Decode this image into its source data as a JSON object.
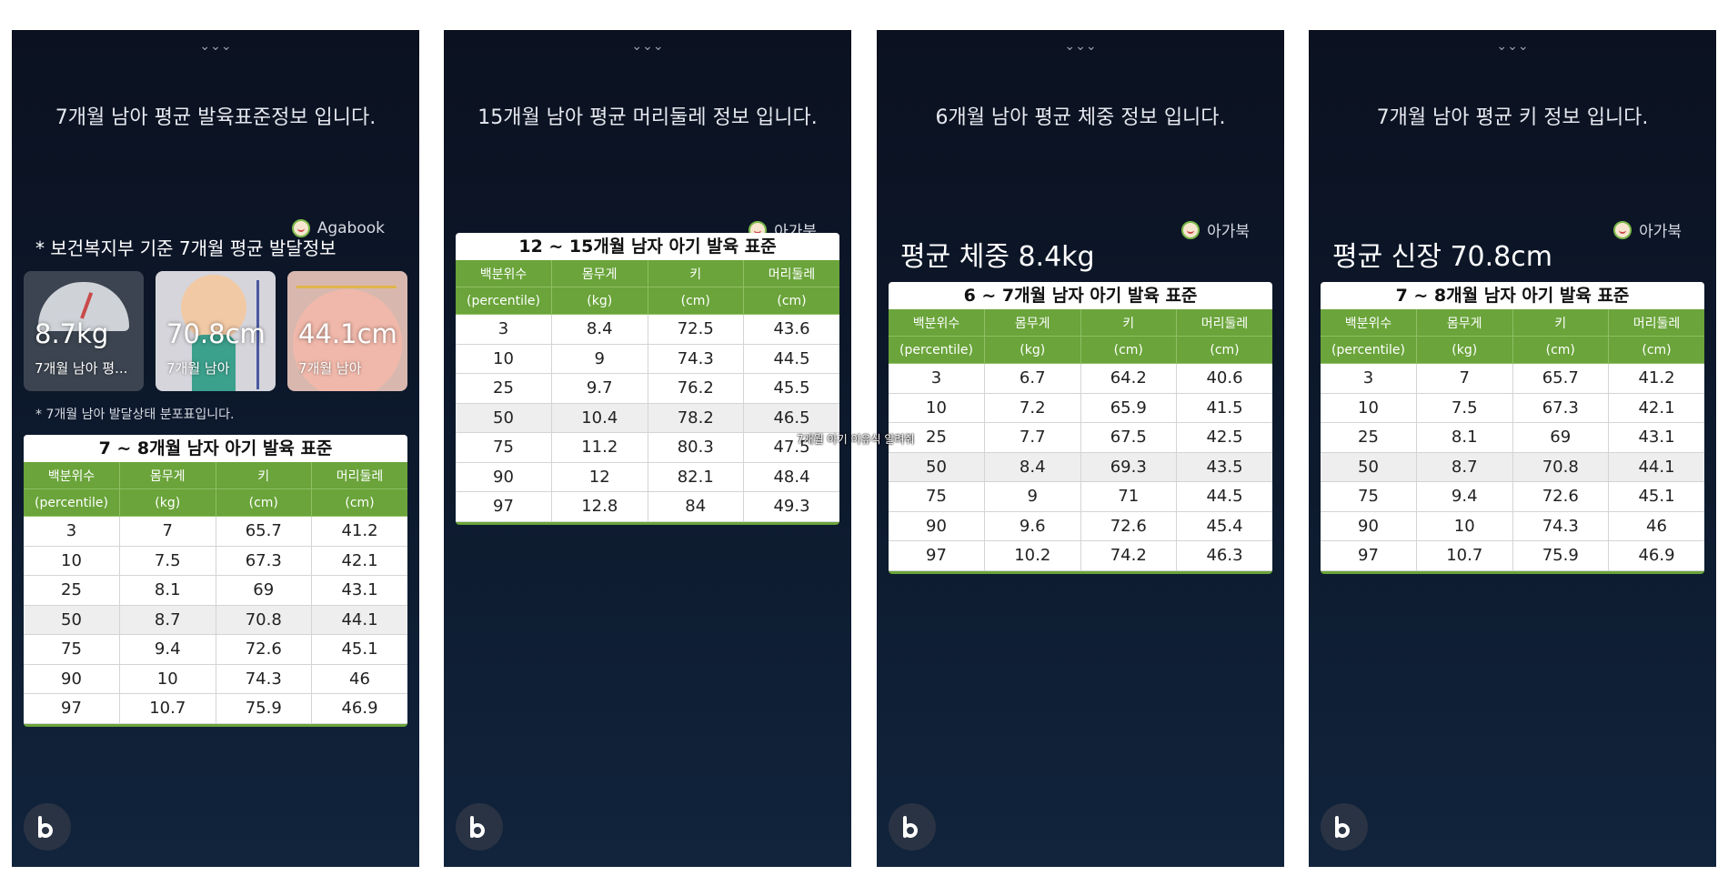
{
  "common": {
    "chevron": "⌄⌄⌄",
    "table_headers": [
      {
        "ko": "백분위수",
        "en": "(percentile)"
      },
      {
        "ko": "몸무게",
        "en": "(kg)"
      },
      {
        "ko": "키",
        "en": "(cm)"
      },
      {
        "ko": "머리둘레",
        "en": "(cm)"
      }
    ]
  },
  "panels": [
    {
      "reply": "7개월 남아 평균 발육표준정보 입니다.",
      "source": "Agabook",
      "subheading": "* 보건복지부 기준 7개월 평균 발달정보",
      "cards": [
        {
          "value": "8.7kg",
          "label": "7개월 남아 평..."
        },
        {
          "value": "70.8cm",
          "label": "7개월 남아"
        },
        {
          "value": "44.1cm",
          "label": "7개월 남아"
        }
      ],
      "note": "* 7개월 남아 발달상태 분포표입니다.",
      "table": {
        "title": "7 ~ 8개월 남자 아기 발육 표준",
        "highlight_row": 3,
        "rows": [
          [
            "3",
            "7",
            "65.7",
            "41.2"
          ],
          [
            "10",
            "7.5",
            "67.3",
            "42.1"
          ],
          [
            "25",
            "8.1",
            "69",
            "43.1"
          ],
          [
            "50",
            "8.7",
            "70.8",
            "44.1"
          ],
          [
            "75",
            "9.4",
            "72.6",
            "45.1"
          ],
          [
            "90",
            "10",
            "74.3",
            "46"
          ],
          [
            "97",
            "10.7",
            "75.9",
            "46.9"
          ]
        ]
      }
    },
    {
      "reply": "15개월 남아 평균 머리둘레 정보 입니다.",
      "source": "아가북",
      "table": {
        "title": "12 ~ 15개월 남자 아기 발육 표준",
        "highlight_row": 3,
        "rows": [
          [
            "3",
            "8.4",
            "72.5",
            "43.6"
          ],
          [
            "10",
            "9",
            "74.3",
            "44.5"
          ],
          [
            "25",
            "9.7",
            "76.2",
            "45.5"
          ],
          [
            "50",
            "10.4",
            "78.2",
            "46.5"
          ],
          [
            "75",
            "11.2",
            "80.3",
            "47.5"
          ],
          [
            "90",
            "12",
            "82.1",
            "48.4"
          ],
          [
            "97",
            "12.8",
            "84",
            "49.3"
          ]
        ]
      }
    },
    {
      "reply": "6개월 남아 평균 체중 정보 입니다.",
      "source": "아가북",
      "big": "평균 체중 8.4kg",
      "table": {
        "title": "6 ~ 7개월 남자 아기 발육 표준",
        "highlight_row": 3,
        "rows": [
          [
            "3",
            "6.7",
            "64.2",
            "40.6"
          ],
          [
            "10",
            "7.2",
            "65.9",
            "41.5"
          ],
          [
            "25",
            "7.7",
            "67.5",
            "42.5"
          ],
          [
            "50",
            "8.4",
            "69.3",
            "43.5"
          ],
          [
            "75",
            "9",
            "71",
            "44.5"
          ],
          [
            "90",
            "9.6",
            "72.6",
            "45.4"
          ],
          [
            "97",
            "10.2",
            "74.2",
            "46.3"
          ]
        ]
      }
    },
    {
      "reply": "7개월 남아 평균 키 정보 입니다.",
      "source": "아가북",
      "big": "평균 신장 70.8cm",
      "table": {
        "title": "7 ~ 8개월 남자 아기 발육 표준",
        "highlight_row": 3,
        "rows": [
          [
            "3",
            "7",
            "65.7",
            "41.2"
          ],
          [
            "10",
            "7.5",
            "67.3",
            "42.1"
          ],
          [
            "25",
            "8.1",
            "69",
            "43.1"
          ],
          [
            "50",
            "8.7",
            "70.8",
            "44.1"
          ],
          [
            "75",
            "9.4",
            "72.6",
            "45.1"
          ],
          [
            "90",
            "10",
            "74.3",
            "46"
          ],
          [
            "97",
            "10.7",
            "75.9",
            "46.9"
          ]
        ]
      }
    }
  ],
  "overlay_text": "7개월 아기 이유식 알려줘"
}
